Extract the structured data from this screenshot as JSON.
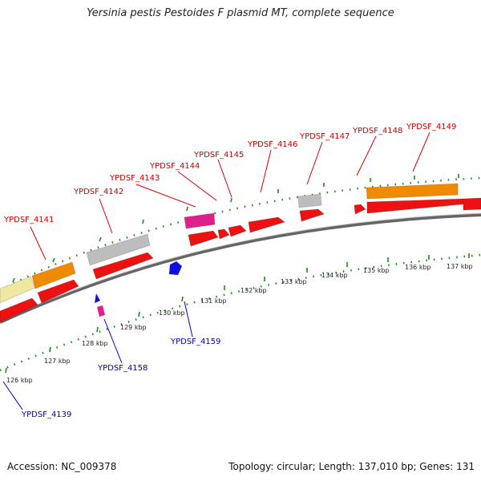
{
  "title": "Yersinia pestis Pestoides F plasmid MT, complete sequence",
  "footer": {
    "accession_label": "Accession:",
    "accession": "NC_009378",
    "topology_label": "Topology:",
    "topology": "circular",
    "length_label": "Length:",
    "length": "137,010 bp",
    "genes_label": "Genes:",
    "genes": "131"
  },
  "colors": {
    "cds": "#ee1111",
    "orange": "#f08a00",
    "grey": "#bdbdbd",
    "pink": "#e0208a",
    "yellow": "#eee8a0",
    "blue": "#1010dd",
    "tick": "#1a8a1a",
    "backbone": "#777777",
    "label_forward": "#cc0000",
    "label_reverse": "#0000bb"
  },
  "kbp_ticks": [
    "126 kbp",
    "127 kbp",
    "128 kbp",
    "129 kbp",
    "130 kbp",
    "131 kbp",
    "132 kbp",
    "133 kbp",
    "134 kbp",
    "135 kbp",
    "136 kbp",
    "137 kbp"
  ],
  "gene_labels_forward": [
    "YPDSF_4141",
    "YPDSF_4142",
    "YPDSF_4143",
    "YPDSF_4144",
    "YPDSF_4145",
    "YPDSF_4146",
    "YPDSF_4147",
    "YPDSF_4148",
    "YPDSF_4149"
  ],
  "gene_labels_reverse": [
    "YPDSF_4139",
    "YPDSF_4158",
    "YPDSF_4159"
  ]
}
